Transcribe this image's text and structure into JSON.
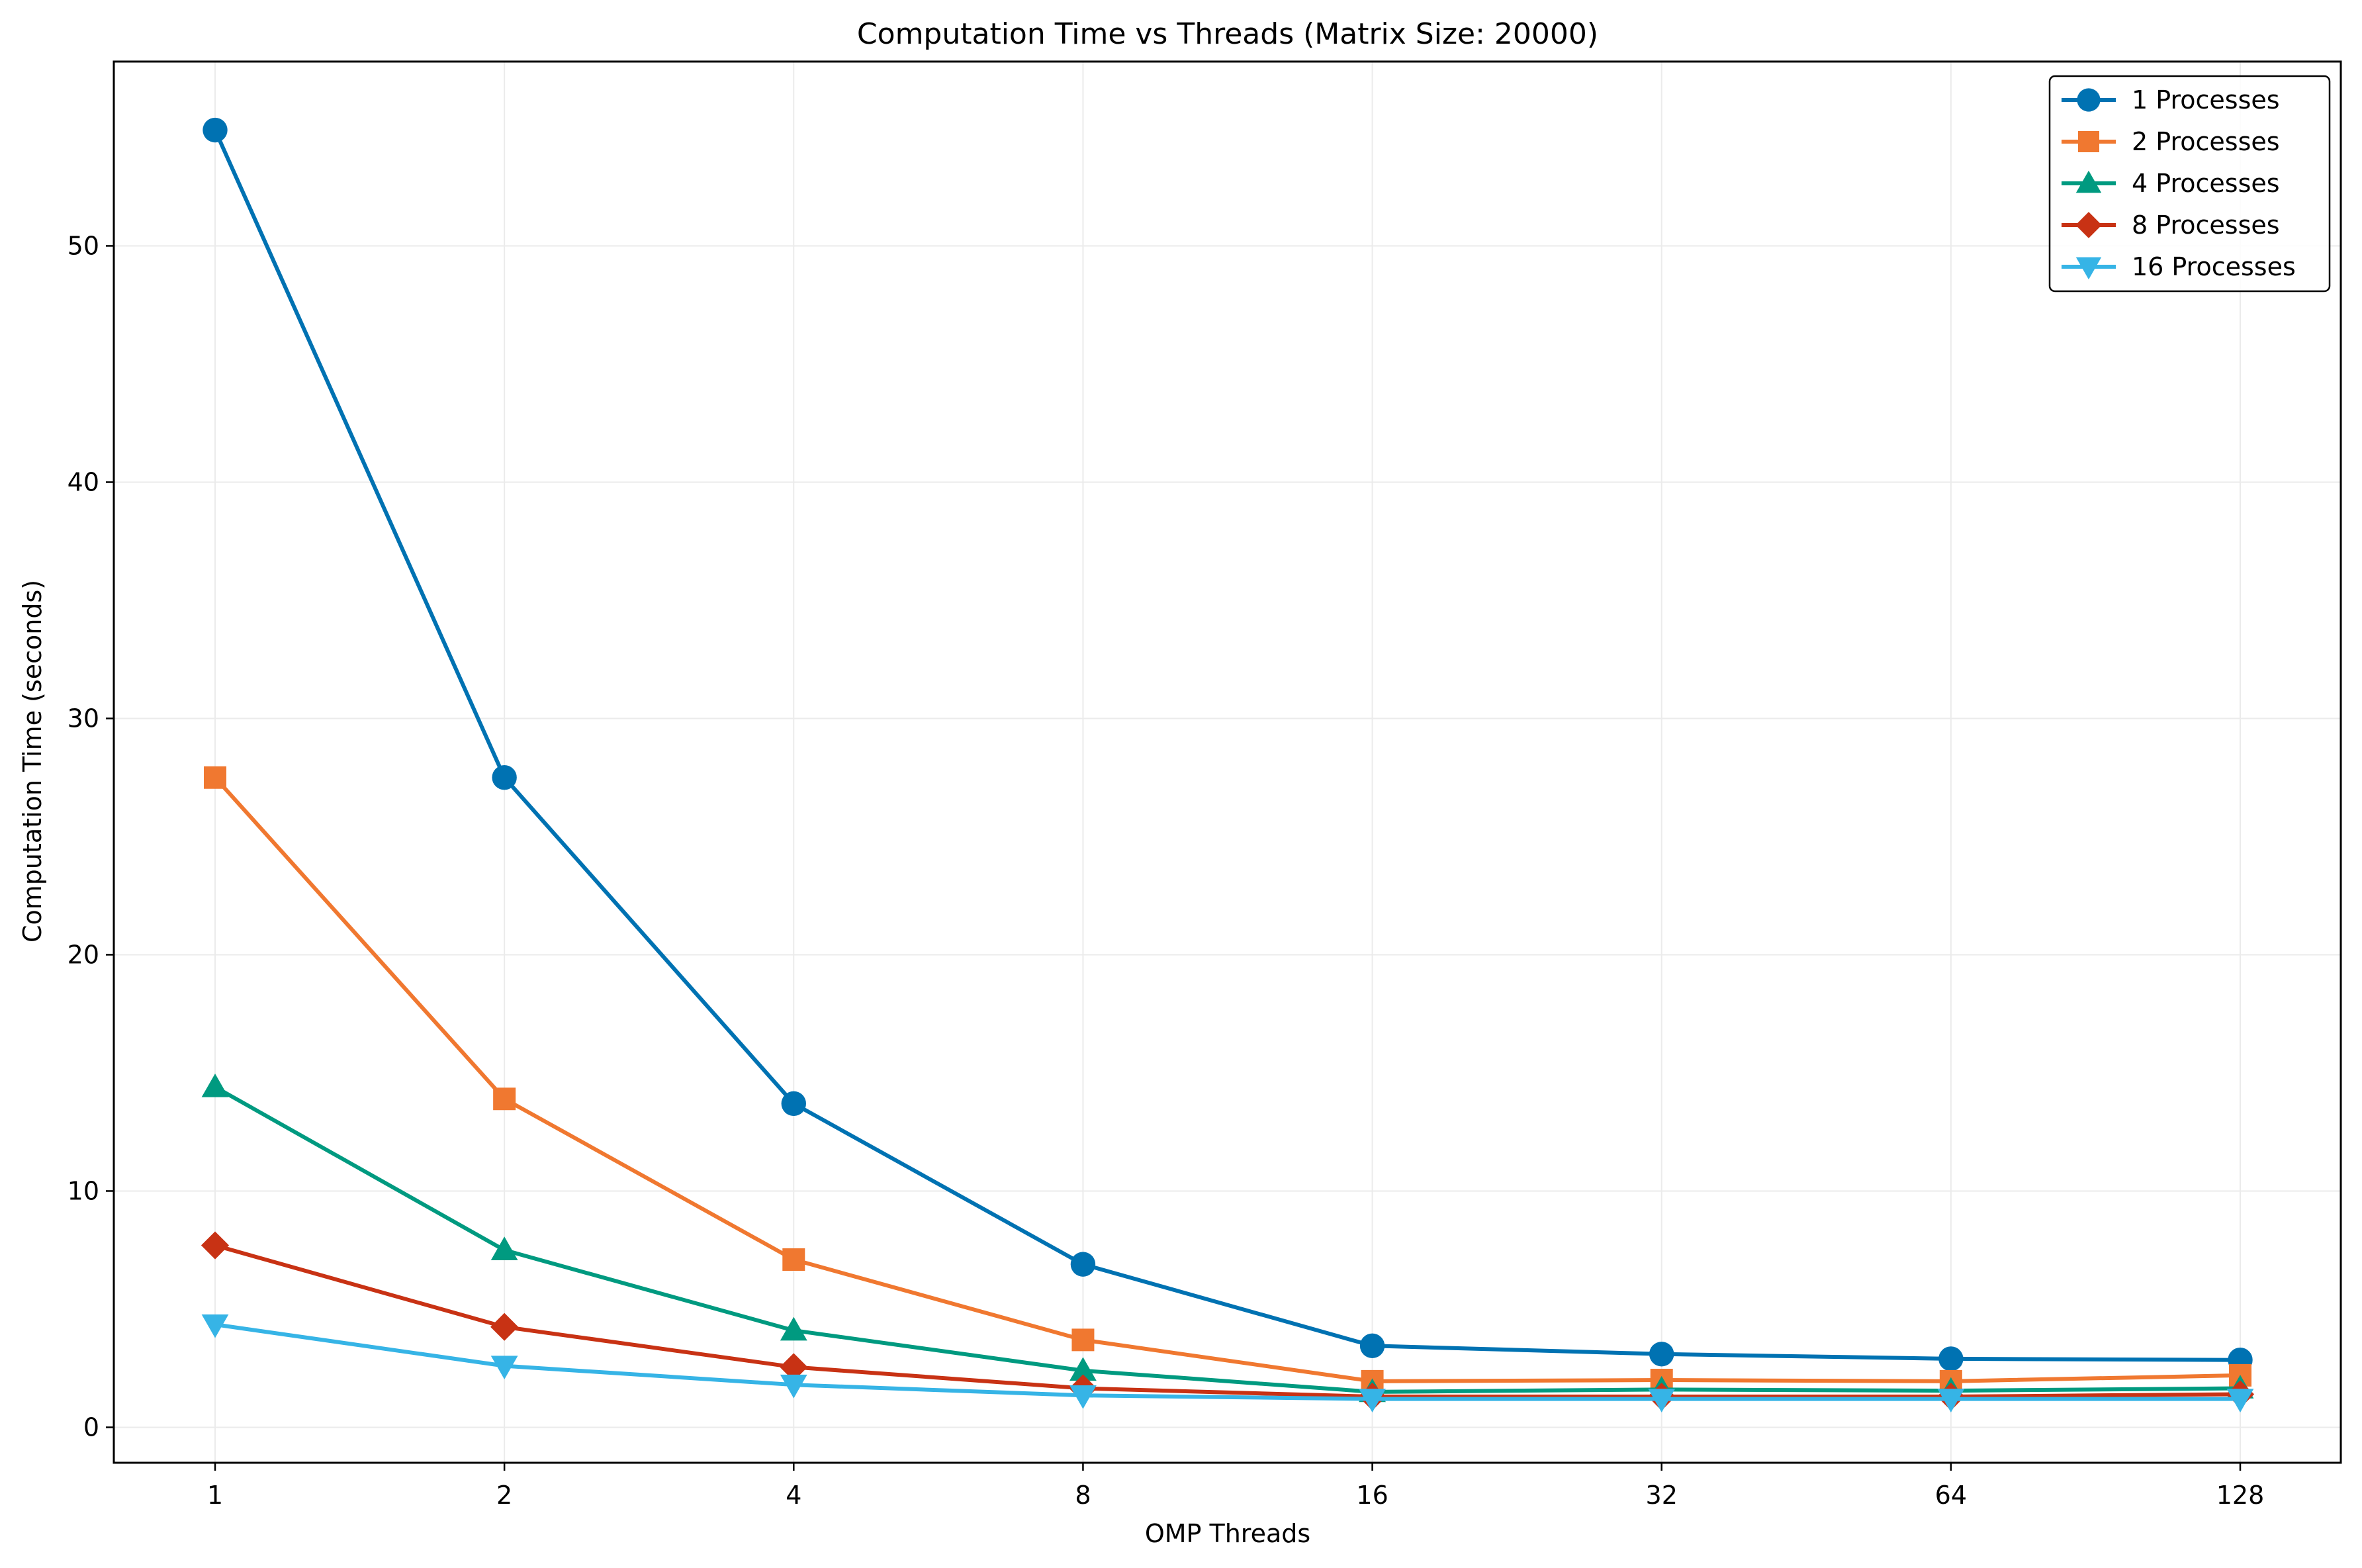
{
  "chart_data": {
    "type": "line",
    "title": "Computation Time vs Threads (Matrix Size: 20000)",
    "xlabel": "OMP Threads",
    "ylabel": "Computation Time (seconds)",
    "x": [
      1,
      2,
      4,
      8,
      16,
      32,
      64,
      128
    ],
    "x_tick_labels": [
      "1",
      "2",
      "4",
      "8",
      "16",
      "32",
      "64",
      "128"
    ],
    "x_scale": "log2",
    "ylim": [
      -1.5,
      57.8
    ],
    "y_ticks": [
      0,
      10,
      20,
      30,
      40,
      50
    ],
    "grid": true,
    "legend_position": "top-right",
    "series": [
      {
        "name": "1 Processes",
        "color": "#0072b2",
        "marker": "circle",
        "values": [
          54.9,
          27.5,
          13.7,
          6.9,
          3.45,
          3.1,
          2.9,
          2.85
        ]
      },
      {
        "name": "2 Processes",
        "color": "#f07830",
        "marker": "square",
        "values": [
          27.5,
          13.9,
          7.1,
          3.7,
          1.95,
          2.0,
          1.95,
          2.2
        ]
      },
      {
        "name": "4 Processes",
        "color": "#009a80",
        "marker": "triangle-up",
        "values": [
          14.4,
          7.5,
          4.1,
          2.4,
          1.5,
          1.6,
          1.55,
          1.65
        ]
      },
      {
        "name": "8 Processes",
        "color": "#c83214",
        "marker": "diamond",
        "values": [
          7.7,
          4.25,
          2.55,
          1.65,
          1.3,
          1.3,
          1.3,
          1.4
        ]
      },
      {
        "name": "16 Processes",
        "color": "#36b4e6",
        "marker": "triangle-down",
        "values": [
          4.35,
          2.6,
          1.8,
          1.35,
          1.2,
          1.2,
          1.2,
          1.2
        ]
      }
    ]
  }
}
